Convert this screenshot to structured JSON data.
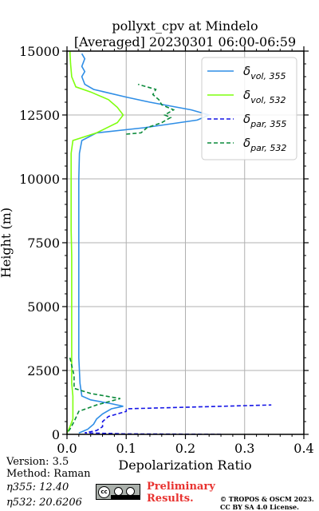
{
  "chart_data": {
    "type": "line",
    "title": "pollyxt_cpv at Mindelo",
    "subtitle": "[Averaged] 20230301 06:00-06:59",
    "xlabel": "Depolarization Ratio",
    "ylabel": "Height (m)",
    "xlim": [
      0,
      0.4
    ],
    "ylim": [
      0,
      15000
    ],
    "xticks": [
      "0.0",
      "0.1",
      "0.2",
      "0.3",
      "0.4"
    ],
    "yticks": [
      "0",
      "2500",
      "5000",
      "7500",
      "10000",
      "12500",
      "15000"
    ],
    "grid": true,
    "legend_position": "top-right",
    "series": [
      {
        "name_base": "δ",
        "name_sub": "vol, 355",
        "color": "#2f8ee6",
        "dash": "solid",
        "points": [
          [
            0.02,
            50
          ],
          [
            0.035,
            200
          ],
          [
            0.045,
            400
          ],
          [
            0.05,
            600
          ],
          [
            0.06,
            800
          ],
          [
            0.075,
            1000
          ],
          [
            0.095,
            1100
          ],
          [
            0.075,
            1200
          ],
          [
            0.04,
            1350
          ],
          [
            0.025,
            1500
          ],
          [
            0.022,
            2000
          ],
          [
            0.02,
            3000
          ],
          [
            0.02,
            4000
          ],
          [
            0.02,
            5000
          ],
          [
            0.02,
            6000
          ],
          [
            0.02,
            7000
          ],
          [
            0.02,
            8000
          ],
          [
            0.02,
            9000
          ],
          [
            0.02,
            10000
          ],
          [
            0.021,
            11000
          ],
          [
            0.025,
            11500
          ],
          [
            0.05,
            11800
          ],
          [
            0.13,
            12000
          ],
          [
            0.22,
            12300
          ],
          [
            0.24,
            12500
          ],
          [
            0.21,
            12700
          ],
          [
            0.14,
            13000
          ],
          [
            0.1,
            13200
          ],
          [
            0.045,
            13500
          ],
          [
            0.03,
            13700
          ],
          [
            0.025,
            14000
          ],
          [
            0.03,
            14200
          ],
          [
            0.025,
            14400
          ],
          [
            0.03,
            14700
          ],
          [
            0.025,
            14900
          ]
        ]
      },
      {
        "name_base": "δ",
        "name_sub": "vol, 532",
        "color": "#7fff0f",
        "dash": "solid",
        "points": [
          [
            0.0,
            50
          ],
          [
            0.005,
            300
          ],
          [
            0.01,
            600
          ],
          [
            0.01,
            1000
          ],
          [
            0.01,
            1500
          ],
          [
            0.008,
            2000
          ],
          [
            0.008,
            3000
          ],
          [
            0.008,
            4000
          ],
          [
            0.008,
            5000
          ],
          [
            0.008,
            6000
          ],
          [
            0.008,
            7000
          ],
          [
            0.007,
            8000
          ],
          [
            0.007,
            9000
          ],
          [
            0.007,
            10000
          ],
          [
            0.007,
            11000
          ],
          [
            0.01,
            11500
          ],
          [
            0.05,
            11800
          ],
          [
            0.085,
            12200
          ],
          [
            0.095,
            12500
          ],
          [
            0.085,
            12800
          ],
          [
            0.07,
            13100
          ],
          [
            0.04,
            13400
          ],
          [
            0.015,
            13600
          ],
          [
            0.008,
            14000
          ],
          [
            0.006,
            14500
          ],
          [
            0.005,
            15000
          ]
        ]
      },
      {
        "name_base": "δ",
        "name_sub": "par, 355",
        "color": "#1414e6",
        "dash": "dashed",
        "points": [
          [
            0.26,
            0
          ],
          [
            0.1,
            20
          ],
          [
            0.03,
            60
          ],
          [
            0.05,
            150
          ],
          [
            0.06,
            300
          ],
          [
            0.06,
            500
          ],
          [
            0.07,
            700
          ],
          [
            0.1,
            900
          ],
          [
            0.1,
            1000
          ],
          [
            0.345,
            1150
          ]
        ]
      },
      {
        "name_base": "δ",
        "name_sub": "par, 532",
        "color": "#0a8a3a",
        "dash": "dashed",
        "points": [
          [
            0.005,
            3000
          ],
          [
            0.012,
            2300
          ],
          [
            0.012,
            1800
          ],
          [
            0.04,
            1600
          ],
          [
            0.09,
            1400
          ],
          [
            0.05,
            1150
          ],
          [
            0.02,
            900
          ],
          [
            0.012,
            500
          ],
          [
            0.005,
            200
          ],
          [
            0.0,
            50
          ]
        ]
      },
      {
        "name_base": "δ",
        "name_sub": "par, 532",
        "color": "#0a8a3a",
        "dash": "dashed",
        "points": [
          [
            0.1,
            11750
          ],
          [
            0.125,
            11800
          ],
          [
            0.135,
            12000
          ],
          [
            0.16,
            12200
          ],
          [
            0.175,
            12400
          ],
          [
            0.165,
            12500
          ],
          [
            0.18,
            12700
          ],
          [
            0.16,
            12900
          ],
          [
            0.155,
            13100
          ],
          [
            0.145,
            13300
          ],
          [
            0.15,
            13500
          ],
          [
            0.12,
            13700
          ]
        ]
      }
    ]
  },
  "info": {
    "version": "Version: 3.5",
    "method": "Method: Raman",
    "eta355": "η355:  12.40",
    "eta532": "η532: 20.6206"
  },
  "footer": {
    "preliminary_line1": "Preliminary",
    "preliminary_line2": "Results.",
    "license_line1": "© TROPOS & OSCM 2023.",
    "license_line2": "CC BY SA 4.0 License.",
    "cc_badge": "cc"
  }
}
